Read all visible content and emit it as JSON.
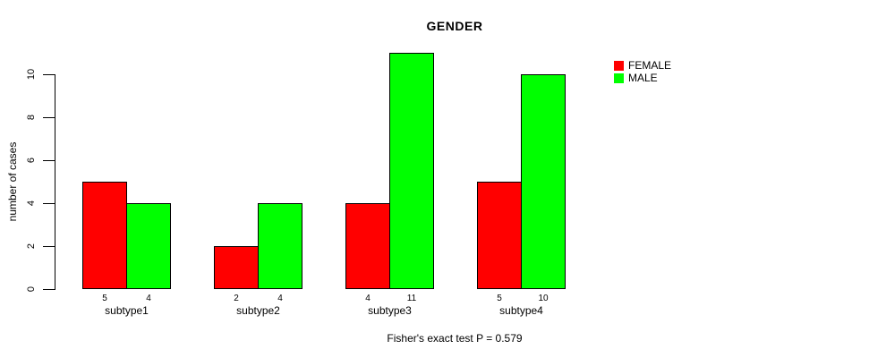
{
  "chart_data": {
    "type": "bar",
    "title": "GENDER",
    "ylabel": "number of cases",
    "xlabel": "",
    "caption": "Fisher's exact test P = 0.579",
    "categories": [
      "subtype1",
      "subtype2",
      "subtype3",
      "subtype4"
    ],
    "series": [
      {
        "name": "FEMALE",
        "color": "#ff0000",
        "values": [
          5,
          2,
          4,
          5
        ]
      },
      {
        "name": "MALE",
        "color": "#00ff00",
        "values": [
          4,
          4,
          11,
          10
        ]
      }
    ],
    "y_ticks": [
      0,
      2,
      4,
      6,
      8,
      10
    ],
    "ylim": [
      0,
      10
    ],
    "bar_value_labels": [
      [
        5,
        4
      ],
      [
        2,
        4
      ],
      [
        4,
        11
      ],
      [
        5,
        10
      ]
    ],
    "legend_position": "top-right",
    "grid": false,
    "background": "#ffffff",
    "axis_color": "#000000"
  }
}
